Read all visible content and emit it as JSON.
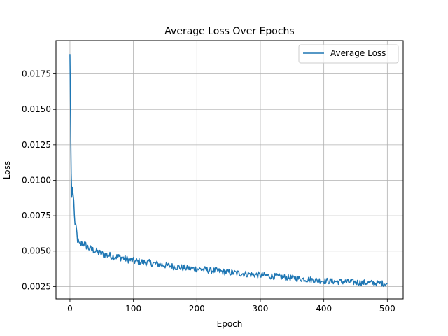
{
  "chart_data": {
    "type": "line",
    "title": "Average Loss Over Epochs",
    "xlabel": "Epoch",
    "ylabel": "Loss",
    "xlim": [
      -22,
      525
    ],
    "ylim": [
      0.00163,
      0.01985
    ],
    "x_ticks": [
      0,
      100,
      200,
      300,
      400,
      500
    ],
    "x_tick_labels": [
      "0",
      "100",
      "200",
      "300",
      "400",
      "500"
    ],
    "y_ticks": [
      0.0025,
      0.005,
      0.0075,
      0.01,
      0.0125,
      0.015,
      0.0175
    ],
    "y_tick_labels": [
      "0.0025",
      "0.0050",
      "0.0075",
      "0.0100",
      "0.0125",
      "0.0150",
      "0.0175"
    ],
    "grid": true,
    "legend_position": "top-right",
    "series": [
      {
        "name": "Average Loss",
        "color": "#1f77b4",
        "x_start": 0,
        "x_end": 500,
        "keypoints": [
          [
            0,
            0.0189
          ],
          [
            1,
            0.0145
          ],
          [
            2,
            0.0105
          ],
          [
            3,
            0.0088
          ],
          [
            4,
            0.0095
          ],
          [
            6,
            0.0085
          ],
          [
            8,
            0.0068
          ],
          [
            10,
            0.0066
          ],
          [
            12,
            0.0058
          ],
          [
            15,
            0.0054
          ],
          [
            20,
            0.0056
          ],
          [
            30,
            0.0052
          ],
          [
            40,
            0.005
          ],
          [
            50,
            0.0048
          ],
          [
            60,
            0.0047
          ],
          [
            80,
            0.00455
          ],
          [
            100,
            0.0043
          ],
          [
            120,
            0.0042
          ],
          [
            150,
            0.004
          ],
          [
            180,
            0.0038
          ],
          [
            200,
            0.00375
          ],
          [
            250,
            0.0035
          ],
          [
            300,
            0.0033
          ],
          [
            350,
            0.0031
          ],
          [
            400,
            0.0029
          ],
          [
            450,
            0.0028
          ],
          [
            500,
            0.0027
          ]
        ]
      }
    ]
  }
}
